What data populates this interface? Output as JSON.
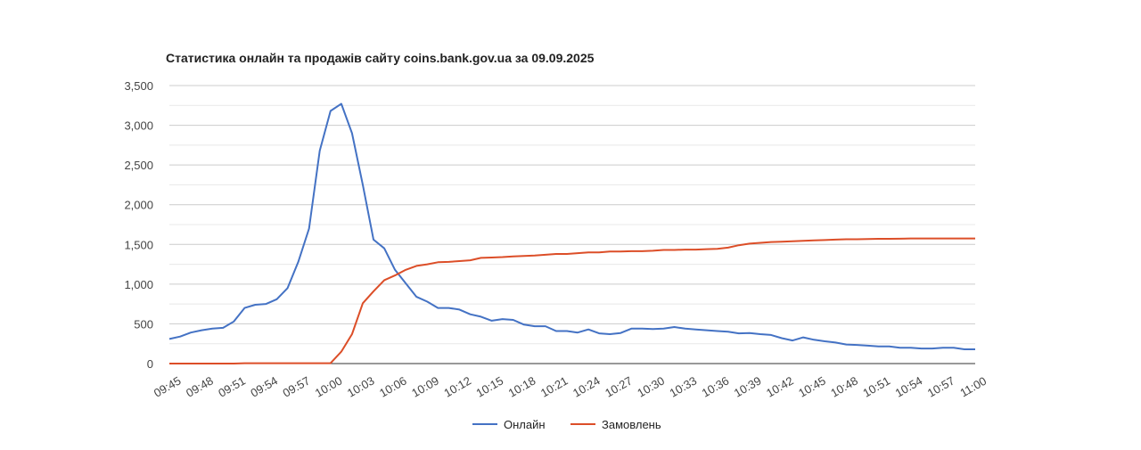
{
  "chart_data": {
    "type": "line",
    "title": "Статистика онлайн та продажів сайту coins.bank.gov.ua за 09.09.2025",
    "xlabel": "",
    "ylabel": "",
    "ylim": [
      0,
      3500
    ],
    "yticks": [
      "0",
      "500",
      "1,000",
      "1,500",
      "2,000",
      "2,500",
      "3,000",
      "3,500"
    ],
    "x_tick_labels": [
      "09:45",
      "09:48",
      "09:51",
      "09:54",
      "09:57",
      "10:00",
      "10:03",
      "10:06",
      "10:09",
      "10:12",
      "10:15",
      "10:18",
      "10:21",
      "10:24",
      "10:27",
      "10:30",
      "10:33",
      "10:36",
      "10:39",
      "10:42",
      "10:45",
      "10:48",
      "10:51",
      "10:54",
      "10:57",
      "11:00"
    ],
    "grid": true,
    "legend_position": "bottom",
    "x": [
      "09:45",
      "09:46",
      "09:47",
      "09:48",
      "09:49",
      "09:50",
      "09:51",
      "09:52",
      "09:53",
      "09:54",
      "09:55",
      "09:56",
      "09:57",
      "09:58",
      "09:59",
      "10:00",
      "10:01",
      "10:02",
      "10:03",
      "10:04",
      "10:05",
      "10:06",
      "10:07",
      "10:08",
      "10:09",
      "10:10",
      "10:11",
      "10:12",
      "10:13",
      "10:14",
      "10:15",
      "10:16",
      "10:17",
      "10:18",
      "10:19",
      "10:20",
      "10:21",
      "10:22",
      "10:23",
      "10:24",
      "10:25",
      "10:26",
      "10:27",
      "10:28",
      "10:29",
      "10:30",
      "10:31",
      "10:32",
      "10:33",
      "10:34",
      "10:35",
      "10:36",
      "10:37",
      "10:38",
      "10:39",
      "10:40",
      "10:41",
      "10:42",
      "10:43",
      "10:44",
      "10:45",
      "10:46",
      "10:47",
      "10:48",
      "10:49",
      "10:50",
      "10:51",
      "10:52",
      "10:53",
      "10:54",
      "10:55",
      "10:56",
      "10:57",
      "10:58",
      "10:59",
      "11:00"
    ],
    "series": [
      {
        "name": "Онлайн",
        "color": "#4472c4",
        "values": [
          310,
          340,
          390,
          420,
          440,
          450,
          530,
          700,
          740,
          750,
          810,
          950,
          1280,
          1700,
          2680,
          3180,
          3270,
          2900,
          2250,
          1560,
          1450,
          1180,
          1010,
          840,
          780,
          700,
          700,
          680,
          620,
          590,
          540,
          560,
          550,
          490,
          470,
          470,
          410,
          410,
          390,
          430,
          380,
          370,
          385,
          440,
          440,
          435,
          440,
          460,
          440,
          430,
          420,
          410,
          400,
          380,
          385,
          370,
          360,
          320,
          290,
          330,
          300,
          280,
          265,
          240,
          235,
          225,
          215,
          215,
          200,
          200,
          190,
          190,
          200,
          200,
          180,
          180
        ]
      },
      {
        "name": "Замовлень",
        "color": "#dc4e28",
        "values": [
          0,
          0,
          0,
          0,
          0,
          0,
          0,
          5,
          5,
          5,
          5,
          5,
          5,
          5,
          5,
          5,
          150,
          370,
          760,
          910,
          1050,
          1110,
          1180,
          1230,
          1250,
          1275,
          1280,
          1290,
          1300,
          1330,
          1335,
          1340,
          1350,
          1355,
          1360,
          1370,
          1380,
          1380,
          1390,
          1400,
          1400,
          1410,
          1410,
          1415,
          1415,
          1420,
          1430,
          1430,
          1435,
          1435,
          1440,
          1445,
          1460,
          1490,
          1510,
          1520,
          1530,
          1535,
          1540,
          1545,
          1550,
          1555,
          1560,
          1565,
          1565,
          1568,
          1570,
          1570,
          1572,
          1575,
          1575,
          1575,
          1575,
          1575,
          1575,
          1575
        ]
      }
    ]
  }
}
